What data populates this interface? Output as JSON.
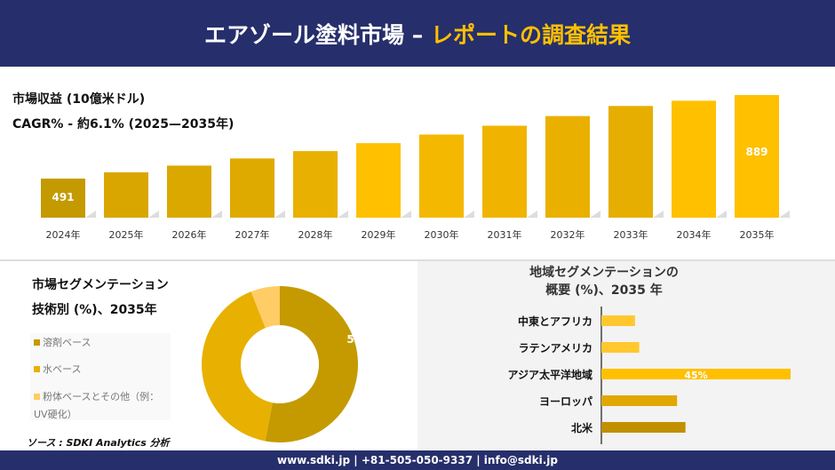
{
  "header": {
    "title_white": "エアゾール塗料市場 –",
    "title_yellow": "レポートの調査結果"
  },
  "revenue": {
    "title": "市場収益 (10億米ドル)",
    "cagr": "CAGR% - 約6.1% (2025—2035年)"
  },
  "segment": {
    "title1": "市場セグメンテーション",
    "title2": "技術別 (%)、2035年"
  },
  "region": {
    "title1": "地域セグメンテーションの",
    "title2": "概要 (%)、2035 年"
  },
  "source": "ソース : SDKI Analytics 分析",
  "footer": "www.sdki.jp | +81-505-050-9337 | info@sdki.jp",
  "chart_data": [
    {
      "type": "bar",
      "title": "市場収益 (10億米ドル)",
      "categories": [
        "2024年",
        "2025年",
        "2026年",
        "2027年",
        "2028年",
        "2029年",
        "2030年",
        "2031年",
        "2032年",
        "2033年",
        "2034年",
        "2035年"
      ],
      "values": [
        491,
        521,
        553,
        587,
        622,
        660,
        701,
        743,
        789,
        837,
        862,
        889
      ],
      "data_labels": {
        "0": "491",
        "11": "889"
      },
      "ylim": [
        305,
        900
      ]
    },
    {
      "type": "pie",
      "title": "技術別 (%)、2035年",
      "labels": [
        "溶剤ベース",
        "水ベース",
        "粉体ベースとその他（例：UV硬化）"
      ],
      "values": [
        53,
        41,
        6
      ],
      "colors": [
        "#c49a00",
        "#e8b000",
        "#ffcc66"
      ],
      "data_labels": [
        "53%",
        "",
        ""
      ]
    },
    {
      "type": "bar",
      "orientation": "horizontal",
      "title": "地域セグメンテーションの概要 (%)、2035 年",
      "categories": [
        "中東とアフリカ",
        "ラテンアメリカ",
        "アジア太平洋地域",
        "ヨーロッパ",
        "北米"
      ],
      "values": [
        8,
        9,
        45,
        18,
        20
      ],
      "colors": [
        "#ffc82e",
        "#ffc82e",
        "#ffc000",
        "#e0a800",
        "#c09000"
      ],
      "data_labels": [
        "",
        "",
        "45%",
        "",
        ""
      ]
    }
  ]
}
